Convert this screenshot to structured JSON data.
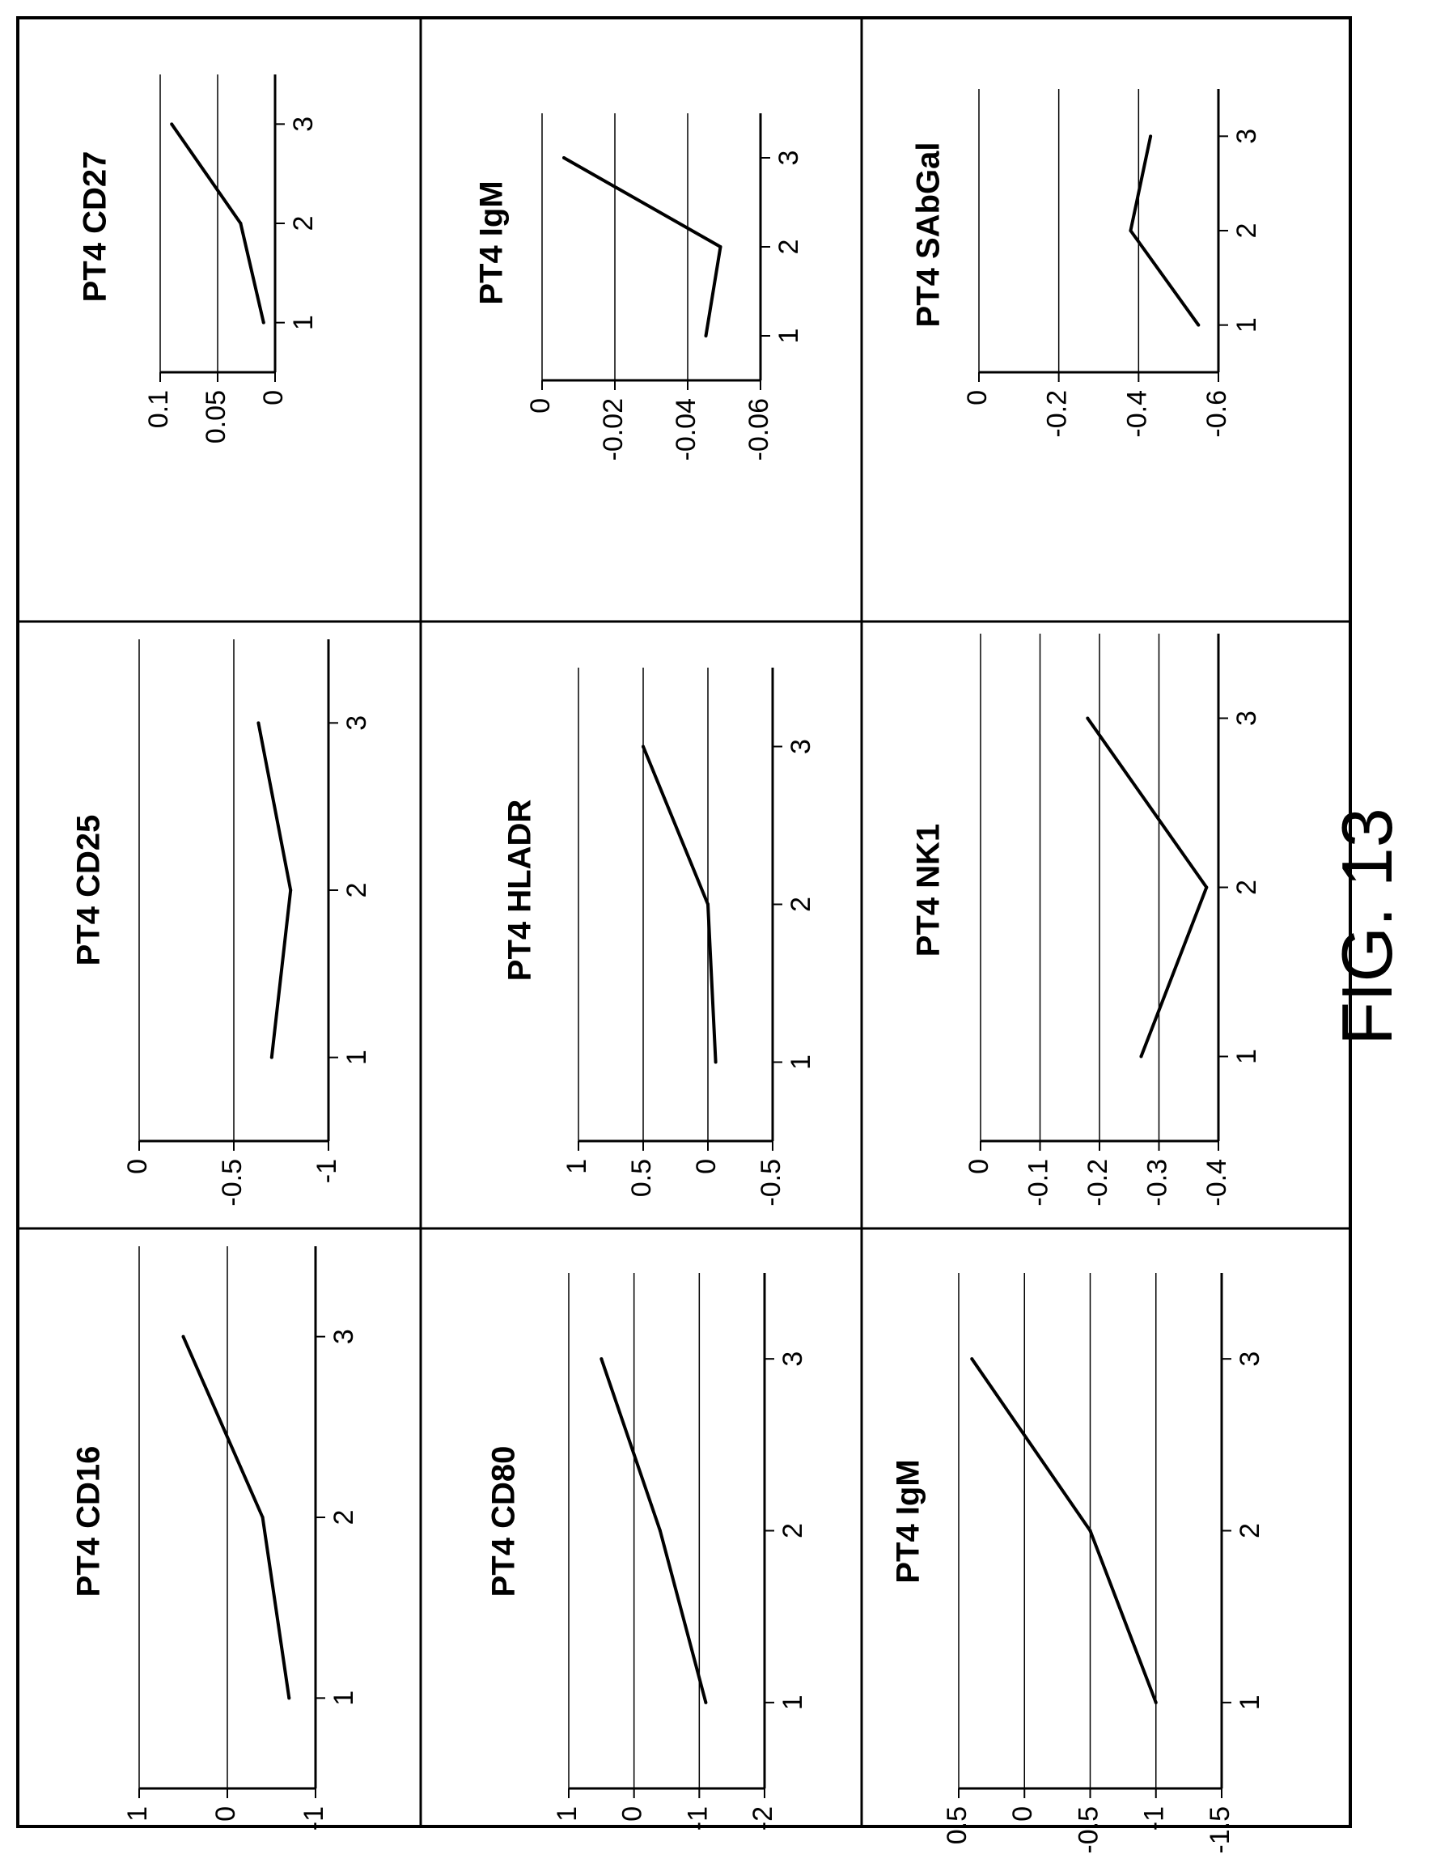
{
  "figure": {
    "caption": "FIG. 13",
    "colors": {
      "line": "#000000",
      "grid": "#000000",
      "border": "#000000",
      "background": "#ffffff"
    }
  },
  "chart_data": [
    {
      "type": "line",
      "title": "PT4 CD16",
      "x": [
        1,
        2,
        3
      ],
      "y": [
        -0.7,
        -0.4,
        0.5
      ],
      "xlim": [
        0.5,
        3.5
      ],
      "ylim": [
        -1,
        1
      ],
      "xticks": [
        "1",
        "2",
        "3"
      ],
      "yticks": [
        "1",
        "0",
        "-1"
      ],
      "grid": true
    },
    {
      "type": "line",
      "title": "PT4 CD25",
      "x": [
        1,
        2,
        3
      ],
      "y": [
        -0.7,
        -0.8,
        -0.63
      ],
      "xlim": [
        0.5,
        3.5
      ],
      "ylim": [
        -1,
        0
      ],
      "xticks": [
        "1",
        "2",
        "3"
      ],
      "yticks": [
        "0",
        "-0.5",
        "-1"
      ],
      "grid": true
    },
    {
      "type": "line",
      "title": "PT4 CD27",
      "x": [
        1,
        2,
        3
      ],
      "y": [
        0.01,
        0.03,
        0.09
      ],
      "xlim": [
        0.5,
        3.5
      ],
      "ylim": [
        0,
        0.1
      ],
      "xticks": [
        "1",
        "2",
        "3"
      ],
      "yticks": [
        "0.1",
        "0.05",
        "0"
      ],
      "grid": true
    },
    {
      "type": "line",
      "title": "PT4 CD80",
      "x": [
        1,
        2,
        3
      ],
      "y": [
        -1.1,
        -0.4,
        0.5
      ],
      "xlim": [
        0.5,
        3.5
      ],
      "ylim": [
        -2,
        1
      ],
      "xticks": [
        "1",
        "2",
        "3"
      ],
      "yticks": [
        "1",
        "0",
        "-1",
        "-2"
      ],
      "grid": true
    },
    {
      "type": "line",
      "title": "PT4 HLADR",
      "x": [
        1,
        2,
        3
      ],
      "y": [
        -0.06,
        0.0,
        0.5
      ],
      "xlim": [
        0.5,
        3.5
      ],
      "ylim": [
        -0.5,
        1
      ],
      "xticks": [
        "1",
        "2",
        "3"
      ],
      "yticks": [
        "1",
        "0.5",
        "0",
        "-0.5"
      ],
      "grid": true
    },
    {
      "type": "line",
      "title": "PT4 IgM",
      "x": [
        1,
        2,
        3
      ],
      "y": [
        -0.045,
        -0.049,
        -0.006
      ],
      "xlim": [
        0.5,
        3.5
      ],
      "ylim": [
        -0.06,
        0
      ],
      "xticks": [
        "1",
        "2",
        "3"
      ],
      "yticks": [
        "0",
        "-0.02",
        "-0.04",
        "-0.06"
      ],
      "grid": true
    },
    {
      "type": "line",
      "title": "PT4 IgM",
      "x": [
        1,
        2,
        3
      ],
      "y": [
        -1.0,
        -0.5,
        0.4
      ],
      "xlim": [
        0.5,
        3.5
      ],
      "ylim": [
        -1.5,
        0.5
      ],
      "xticks": [
        "1",
        "2",
        "3"
      ],
      "yticks": [
        "0.5",
        "0",
        "-0.5",
        "-1",
        "-1.5"
      ],
      "grid": true
    },
    {
      "type": "line",
      "title": "PT4 NK1",
      "x": [
        1,
        2,
        3
      ],
      "y": [
        -0.27,
        -0.38,
        -0.18
      ],
      "xlim": [
        0.5,
        3.5
      ],
      "ylim": [
        -0.4,
        0
      ],
      "xticks": [
        "1",
        "2",
        "3"
      ],
      "yticks": [
        "0",
        "-0.1",
        "-0.2",
        "-0.3",
        "-0.4"
      ],
      "grid": true
    },
    {
      "type": "line",
      "title": "PT4 SAbGal",
      "x": [
        1,
        2,
        3
      ],
      "y": [
        -0.55,
        -0.38,
        -0.43
      ],
      "xlim": [
        0.5,
        3.5
      ],
      "ylim": [
        -0.6,
        0
      ],
      "xticks": [
        "1",
        "2",
        "3"
      ],
      "yticks": [
        "0",
        "-0.2",
        "-0.4",
        "-0.6"
      ],
      "grid": true
    }
  ]
}
